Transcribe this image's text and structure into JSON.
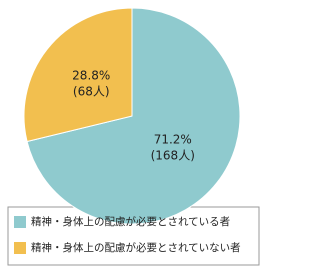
{
  "chart_data": {
    "type": "pie",
    "categories": [
      "精神・身体上の配慮が必要とされている者",
      "精神・身体上の配慮が必要とされていない者"
    ],
    "values": [
      71.2,
      28.8
    ],
    "value_labels": [
      "71.2%",
      "28.8%"
    ],
    "count_labels": [
      "(168人)",
      "(68人)"
    ],
    "colors": [
      "#8fcace",
      "#f2bf4f"
    ],
    "legend": "bottom"
  }
}
